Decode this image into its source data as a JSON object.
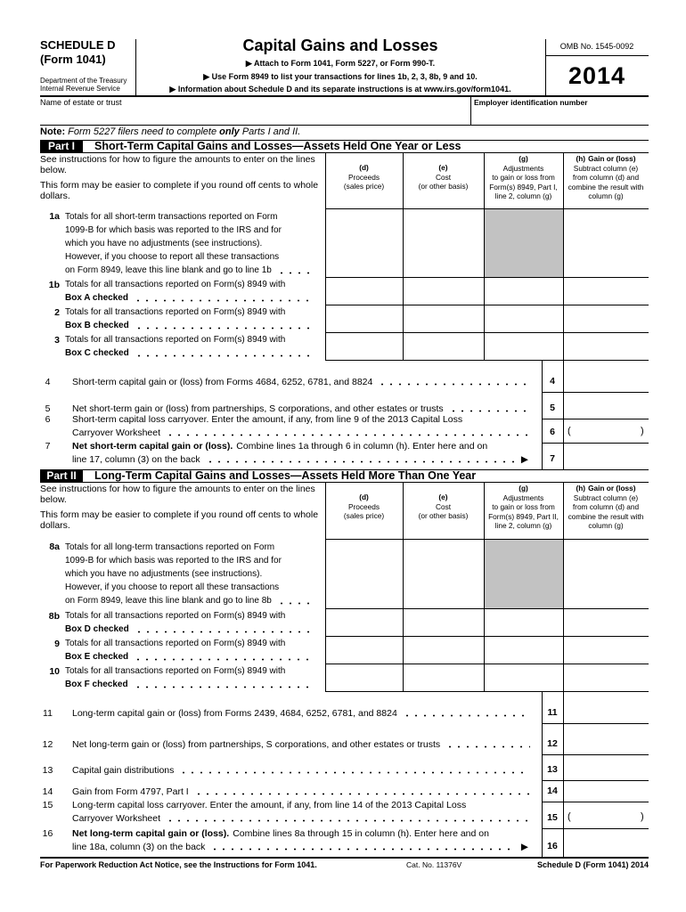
{
  "header": {
    "schedule": "SCHEDULE D",
    "form": "(Form 1041)",
    "department": "Department of the Treasury",
    "irs": "Internal Revenue Service",
    "title": "Capital Gains and Losses",
    "instructions": [
      "▶ Attach to Form 1041, Form 5227, or Form 990-T.",
      "▶ Use Form 8949 to list your transactions for lines 1b, 2, 3, 8b, 9 and 10.",
      "▶ Information about Schedule D and its separate instructions is at www.irs.gov/form1041."
    ],
    "omb": "OMB No. 1545-0092",
    "year": "2014"
  },
  "name_row": {
    "name_label": "Name of estate or trust",
    "ein_label": "Employer identification number"
  },
  "note": {
    "label": "Note:",
    "text_1": "Form 5227 filers need to complete",
    "emphasis": "only",
    "text_2": "Parts I and II."
  },
  "parts": [
    {
      "label": "Part I",
      "title": "Short-Term Capital Gains and Losses—Assets Held One Year or Less",
      "intro": [
        "See instructions for how to figure the amounts to enter on the lines below.",
        "This form may be easier to complete if you round off cents to whole dollars."
      ],
      "columns": [
        {
          "letter": "(d)",
          "text": [
            "Proceeds",
            "(sales price)"
          ]
        },
        {
          "letter": "(e)",
          "text": [
            "Cost",
            "(or other basis)"
          ]
        },
        {
          "letter": "(g)",
          "text": [
            "Adjustments",
            "to gain or loss from",
            "Form(s) 8949, Part I,",
            "line 2, column (g)"
          ]
        },
        {
          "letter": "(h)",
          "heading": "Gain or (loss)",
          "text": [
            "Subtract column (e)",
            "from column (d) and",
            "combine the result with",
            "column (g)"
          ]
        }
      ],
      "lines": [
        {
          "number": "1a",
          "text": [
            "Totals for all short-term transactions reported on Form",
            "1099-B for which basis was reported to the IRS and for",
            "which you have no adjustments (see instructions).",
            "However, if you choose to report all these transactions",
            "on Form 8949, leave this line blank and go to line 1b"
          ]
        },
        {
          "number": "1b",
          "text": [
            "Totals for all transactions reported on Form(s) 8949 with",
            "Box A checked"
          ]
        },
        {
          "number": "2",
          "text": [
            "Totals for all transactions reported on Form(s) 8949 with",
            "Box B checked"
          ]
        },
        {
          "number": "3",
          "text": [
            "Totals for all transactions reported on Form(s) 8949 with",
            "Box C checked"
          ]
        }
      ],
      "summary_lines": [
        {
          "number": "4",
          "text": [
            "Short-term capital gain or (loss) from Forms 4684, 6252, 6781, and 8824"
          ]
        },
        {
          "number": "5",
          "text": [
            "Net short-term gain or (loss) from partnerships, S corporations, and other estates or trusts"
          ]
        },
        {
          "number": "6",
          "text": [
            "Short-term capital loss carryover. Enter the amount, if any, from line 9 of the 2013 Capital Loss",
            "Carryover Worksheet"
          ],
          "parens": [
            "(",
            ")"
          ]
        },
        {
          "number": "7",
          "lead": "Net short-term capital gain or (loss).",
          "text": [
            "Combine lines 1a through 6 in column (h). Enter here and on",
            "line 17, column (3) on the back"
          ],
          "arrow": "▶"
        }
      ]
    },
    {
      "label": "Part II",
      "title": "Long-Term Capital Gains and Losses—Assets Held More Than One Year",
      "intro": [
        "See instructions for how to figure the amounts to enter on the lines below.",
        "This form may be easier to complete if you round off cents to whole dollars."
      ],
      "columns": [
        {
          "letter": "(d)",
          "text": [
            "Proceeds",
            "(sales price)"
          ]
        },
        {
          "letter": "(e)",
          "text": [
            "Cost",
            "(or other basis)"
          ]
        },
        {
          "letter": "(g)",
          "text": [
            "Adjustments",
            "to gain or loss from",
            "Form(s) 8949, Part II,",
            "line 2, column (g)"
          ]
        },
        {
          "letter": "(h)",
          "heading": "Gain or (loss)",
          "text": [
            "Subtract column (e)",
            "from column (d) and",
            "combine the result with",
            "column (g)"
          ]
        }
      ],
      "lines": [
        {
          "number": "8a",
          "text": [
            "Totals for all long-term transactions reported on Form",
            "1099-B for which basis was reported to the IRS and for",
            "which you have no adjustments (see instructions).",
            "However, if you choose to report all these transactions",
            "on Form 8949, leave this line blank and go to line 8b"
          ]
        },
        {
          "number": "8b",
          "text": [
            "Totals for all transactions reported on Form(s) 8949 with",
            "Box D checked"
          ]
        },
        {
          "number": "9",
          "text": [
            "Totals for all transactions reported on Form(s) 8949 with",
            "Box E checked"
          ]
        },
        {
          "number": "10",
          "text": [
            "Totals for all transactions reported on Form(s) 8949 with",
            "Box F checked"
          ]
        }
      ],
      "summary_lines": [
        {
          "number": "11",
          "text": [
            "Long-term capital gain or (loss) from Forms 2439, 4684, 6252, 6781, and 8824"
          ]
        },
        {
          "number": "12",
          "text": [
            "Net long-term gain or (loss) from partnerships, S corporations, and other estates or trusts"
          ]
        },
        {
          "number": "13",
          "text": [
            "Capital gain distributions"
          ]
        },
        {
          "number": "14",
          "text": [
            "Gain from Form 4797, Part I"
          ]
        },
        {
          "number": "15",
          "text": [
            "Long-term capital loss carryover. Enter the amount, if any, from line 14 of the 2013 Capital Loss",
            "Carryover Worksheet"
          ],
          "parens": [
            "(",
            ")"
          ]
        },
        {
          "number": "16",
          "lead": "Net long-term capital gain or (loss).",
          "text": [
            "Combine lines 8a through 15 in column (h). Enter here and on",
            "line 18a, column (3) on the back"
          ],
          "arrow": "▶"
        }
      ]
    }
  ],
  "footer": {
    "notice": "For Paperwork Reduction Act Notice, see the Instructions for Form 1041.",
    "cat": "Cat. No. 11376V",
    "form_id": "Schedule D (Form 1041) 2014"
  }
}
